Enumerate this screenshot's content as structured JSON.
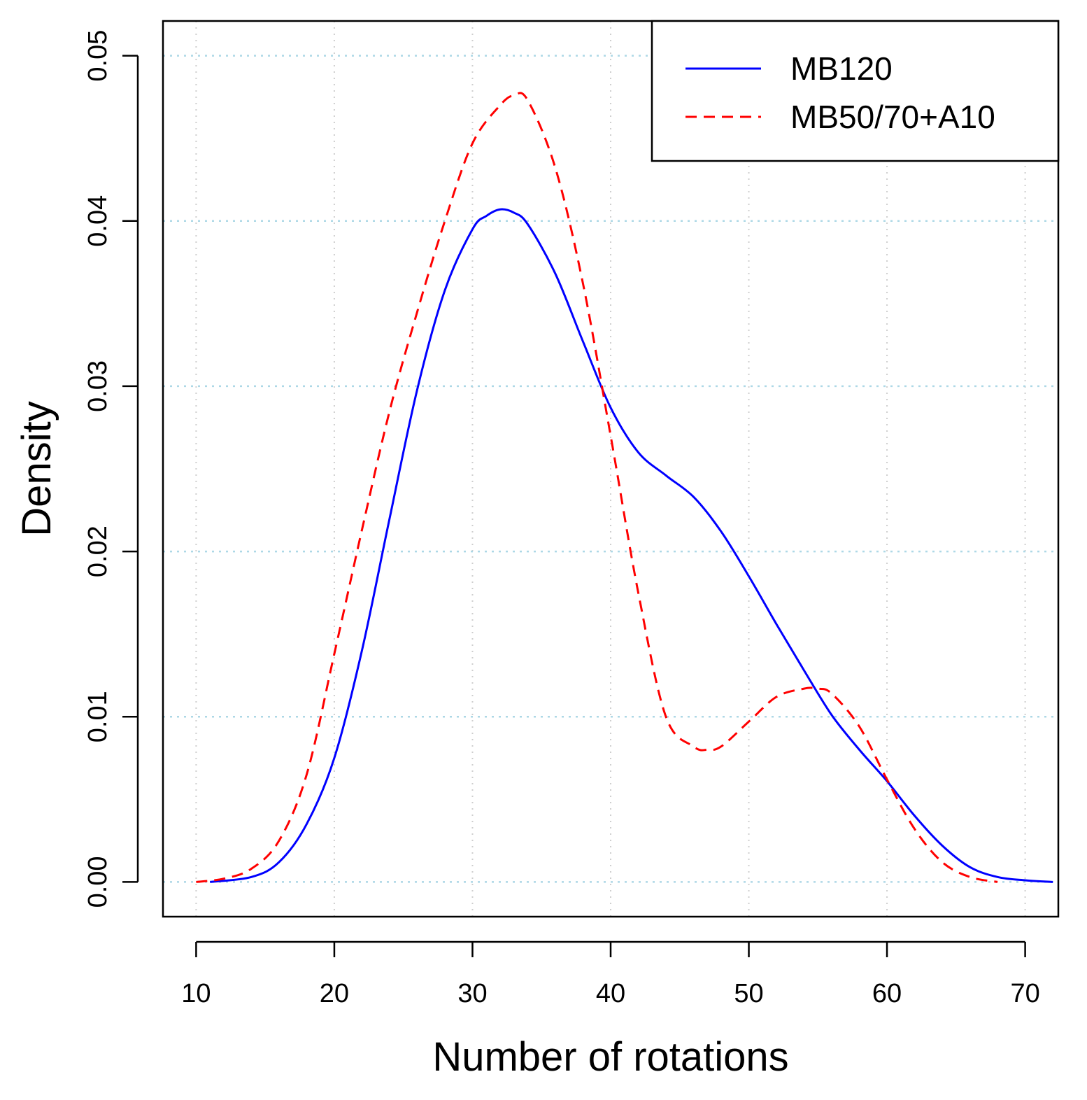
{
  "chart_data": {
    "type": "line",
    "xlabel": "Number of rotations",
    "ylabel": "Density",
    "xlim": [
      7.6,
      72.4
    ],
    "ylim": [
      -0.0021,
      0.0521
    ],
    "x_ticks": [
      10,
      20,
      30,
      40,
      50,
      60,
      70
    ],
    "y_ticks": [
      0.0,
      0.01,
      0.02,
      0.03,
      0.04,
      0.05
    ],
    "x_tick_labels": [
      "10",
      "20",
      "30",
      "40",
      "50",
      "60",
      "70"
    ],
    "y_tick_labels": [
      "0.00",
      "0.01",
      "0.02",
      "0.03",
      "0.04",
      "0.05"
    ],
    "grid": true,
    "grid_color": "#add8e6",
    "legend_position": "top-right",
    "series": [
      {
        "name": "MB120",
        "color": "#0000ff",
        "line_style": "solid",
        "x": [
          11,
          14,
          16,
          18,
          20,
          22,
          24,
          26,
          28,
          30,
          31,
          32,
          33,
          34,
          36,
          38,
          40,
          42,
          44,
          46,
          48,
          50,
          52,
          54,
          56,
          58,
          60,
          62,
          64,
          66,
          68,
          70,
          72
        ],
        "y": [
          0.0,
          0.0003,
          0.0012,
          0.0035,
          0.0075,
          0.014,
          0.022,
          0.0298,
          0.0358,
          0.0395,
          0.0403,
          0.0407,
          0.0405,
          0.0398,
          0.0368,
          0.0327,
          0.0287,
          0.026,
          0.0246,
          0.0233,
          0.0212,
          0.0185,
          0.0156,
          0.0128,
          0.0101,
          0.008,
          0.0061,
          0.004,
          0.0022,
          0.0009,
          0.0003,
          0.0001,
          0.0
        ]
      },
      {
        "name": "MB50/70+A10",
        "color": "#ff0000",
        "line_style": "dashed",
        "x": [
          10,
          12,
          14,
          16,
          18,
          20,
          22,
          24,
          26,
          28,
          30,
          32,
          33,
          34,
          36,
          38,
          40,
          42,
          44,
          46,
          47,
          48,
          50,
          52,
          54,
          55,
          56,
          58,
          60,
          62,
          64,
          66,
          68
        ],
        "y": [
          0.0,
          0.0002,
          0.0008,
          0.0025,
          0.0065,
          0.0138,
          0.0213,
          0.0285,
          0.0345,
          0.04,
          0.0447,
          0.047,
          0.0476,
          0.0473,
          0.0432,
          0.0362,
          0.027,
          0.0175,
          0.01,
          0.0082,
          0.008,
          0.0082,
          0.0097,
          0.0112,
          0.0117,
          0.0117,
          0.0114,
          0.0094,
          0.0062,
          0.0032,
          0.0012,
          0.0003,
          0.0
        ]
      }
    ]
  }
}
